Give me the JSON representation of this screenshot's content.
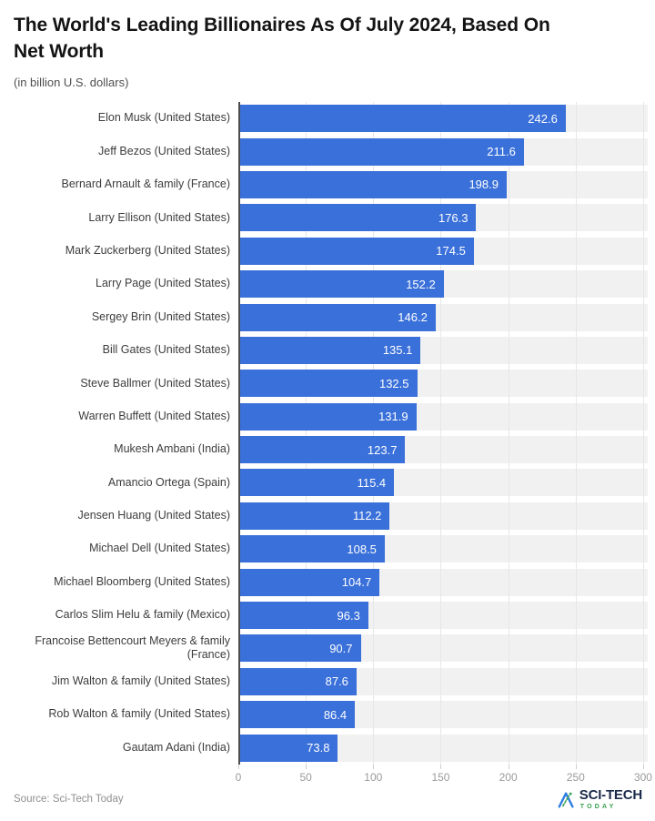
{
  "header": {
    "title_line1": "The World's Leading Billionaires As Of July 2024, Based On",
    "title_line2": "Net Worth",
    "subtitle": "(in billion U.S. dollars)"
  },
  "footer": {
    "source": "Source: Sci-Tech Today",
    "logo_text": "SCI-TECH",
    "logo_subtext": "TODAY"
  },
  "colors": {
    "bar": "#3a70d9",
    "band": "#f1f1f1",
    "grid": "#e7e7e7",
    "axisline": "#4d4d4d",
    "logonavy": "#1b2a4a",
    "logogreen": "#37a04b"
  },
  "chart_data": {
    "type": "bar",
    "orientation": "horizontal",
    "title": "The World's Leading Billionaires As Of July 2024, Based On Net Worth",
    "subtitle": "(in billion U.S. dollars)",
    "categories": [
      "Elon Musk (United States)",
      "Jeff Bezos (United States)",
      "Bernard Arnault & family (France)",
      "Larry Ellison (United States)",
      "Mark Zuckerberg (United States)",
      "Larry Page (United States)",
      "Sergey Brin (United States)",
      "Bill Gates (United States)",
      "Steve Ballmer (United States)",
      "Warren Buffett (United States)",
      "Mukesh Ambani (India)",
      "Amancio Ortega (Spain)",
      "Jensen Huang (United States)",
      "Michael Dell (United States)",
      "Michael Bloomberg (United States)",
      "Carlos Slim Helu & family (Mexico)",
      "Francoise Bettencourt Meyers & family (France)",
      "Jim Walton & family (United States)",
      "Rob Walton & family (United States)",
      "Gautam Adani (India)"
    ],
    "values": [
      242.6,
      211.6,
      198.9,
      176.3,
      174.5,
      152.2,
      146.2,
      135.1,
      132.5,
      131.9,
      123.7,
      115.4,
      112.2,
      108.5,
      104.7,
      96.3,
      90.7,
      87.6,
      86.4,
      73.8
    ],
    "xlabel": "",
    "ylabel": "",
    "xlim": [
      0,
      300
    ],
    "x_ticks": [
      0,
      50,
      100,
      150,
      200,
      250,
      300
    ],
    "grid": "vertical",
    "value_labels": "inside-end",
    "legend": "none",
    "bar_color": "#3a70d9"
  }
}
